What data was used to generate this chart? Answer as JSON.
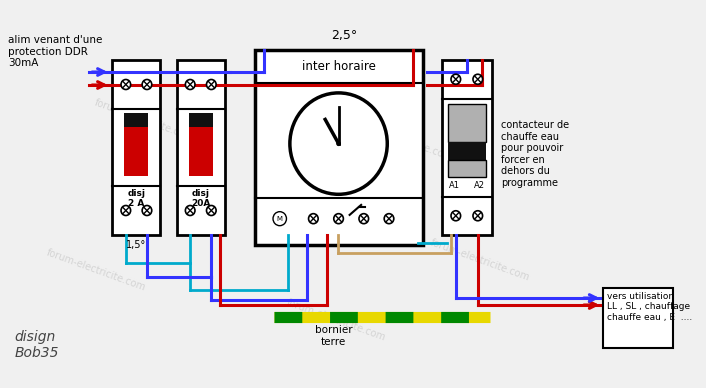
{
  "bg_color": "#f0f0f0",
  "label_alim": "alim venant d'une\nprotection DDR\n30mA",
  "label_2_5": "2,5°",
  "label_1_5": "1,5°",
  "label_disj1": "disj\n2 A",
  "label_disj2": "disj\n20A",
  "label_inter": "inter horaire",
  "label_contacteur": "contacteur de\nchauffe eau\npour pouvoir\nforcer en\ndehors du\nprogramme",
  "label_bornier": "bornier\nterre",
  "label_vers": "vers utilisation\nLL , SL , chauffage\nchauffe eau , E  ....",
  "label_disign": "disign\nBob35",
  "label_A1": "A1",
  "label_A2": "A2",
  "wire_blue": "#3333ff",
  "wire_red": "#cc0000",
  "wire_brown": "#c8a060",
  "wire_cyan": "#00aacc",
  "wire_yellow": "#e8d800",
  "wire_green": "#008800",
  "component_fill": "#ffffff",
  "component_edge": "#000000",
  "red_rect": "#cc0000",
  "black_rect": "#111111",
  "grey_rect": "#aaaaaa",
  "watermark_color": "#c8c8c8",
  "watermark_text": "forum-electricite.com"
}
